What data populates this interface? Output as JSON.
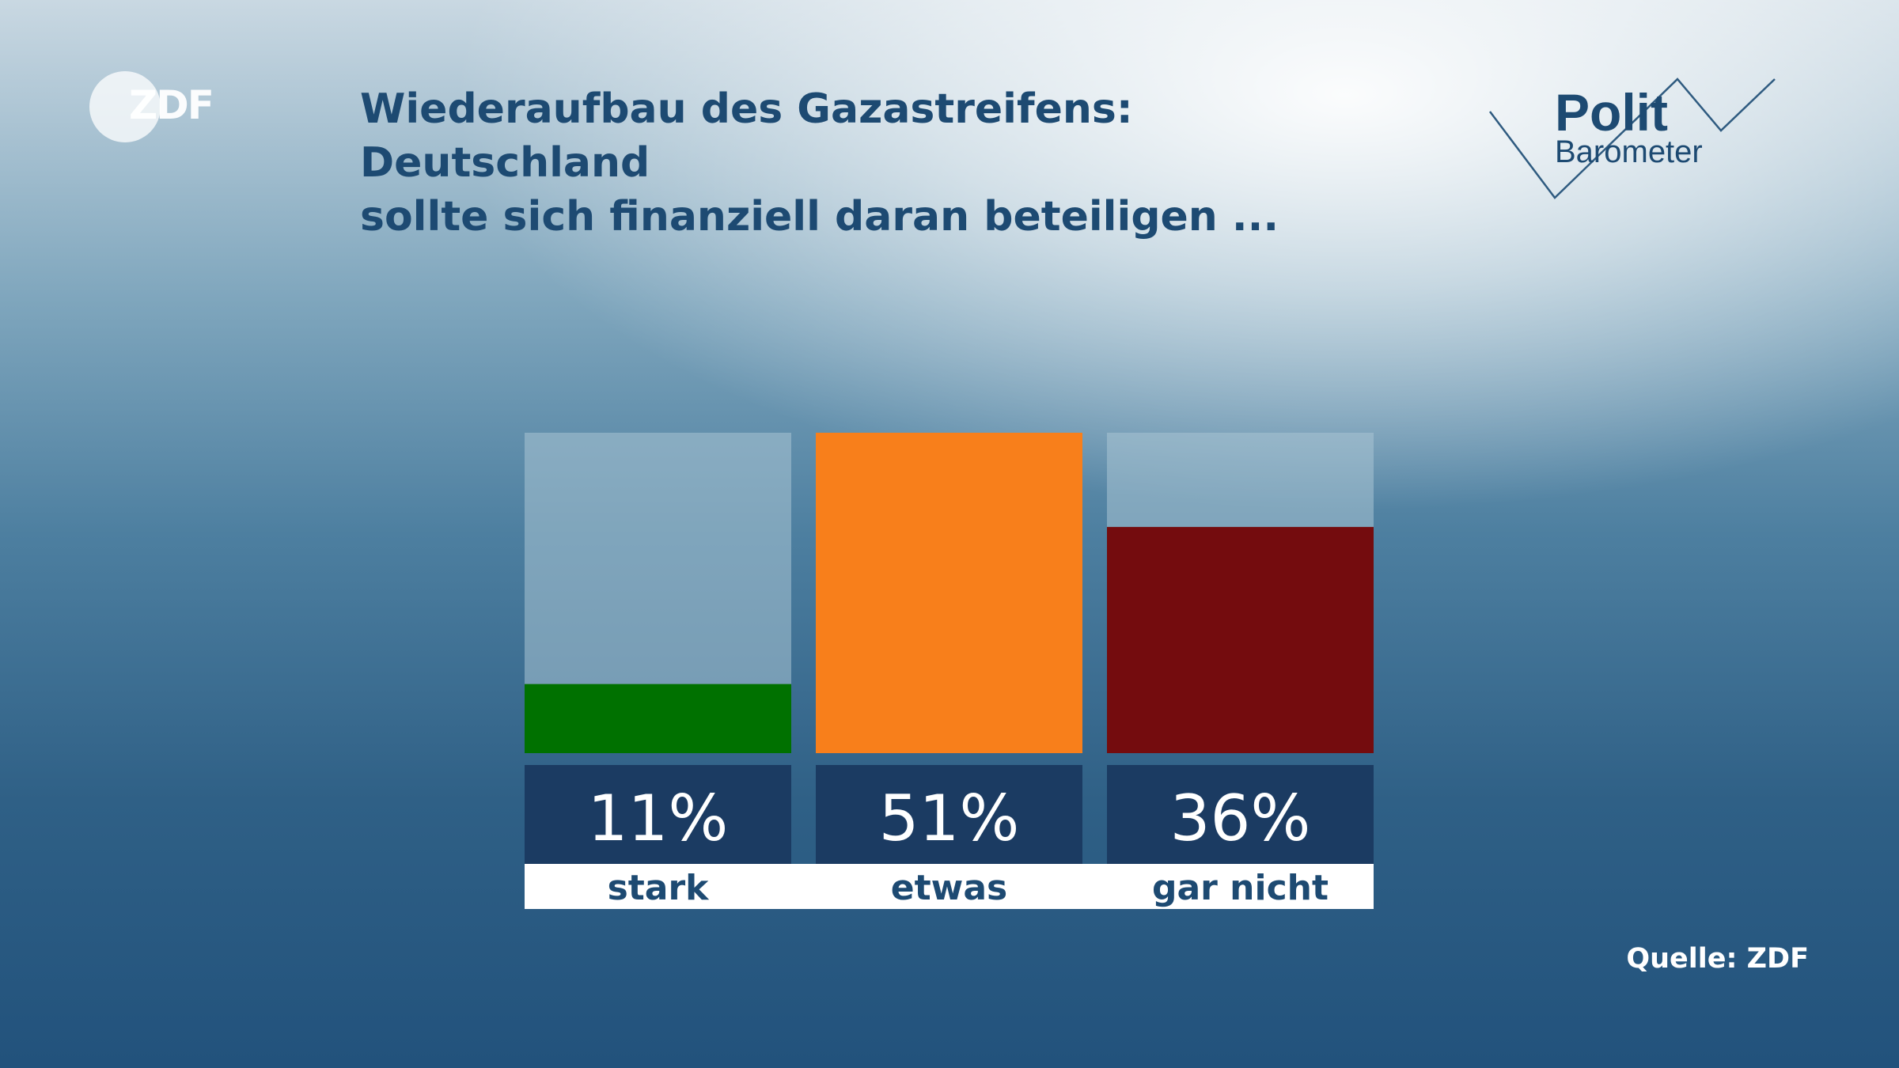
{
  "logo": {
    "text": "ZDF"
  },
  "header": {
    "title_line1": "Wiederaufbau des Gazastreifens: Deutschland",
    "title_line2": "sollte sich finanziell daran beteiligen ..."
  },
  "brand": {
    "line1": "Polit",
    "line2": "Barometer"
  },
  "chart_data": {
    "type": "bar",
    "categories": [
      "stark",
      "etwas",
      "gar nicht"
    ],
    "values": [
      11,
      51,
      36
    ],
    "value_labels": [
      "11%",
      "51%",
      "36%"
    ],
    "ylim": [
      0,
      51
    ],
    "colors": [
      "#007100",
      "#f87f1b",
      "#740c0e"
    ],
    "track_color": "#a9c4d3",
    "label_bg": "#1b3b62"
  },
  "footer": {
    "source": "Quelle: ZDF"
  }
}
